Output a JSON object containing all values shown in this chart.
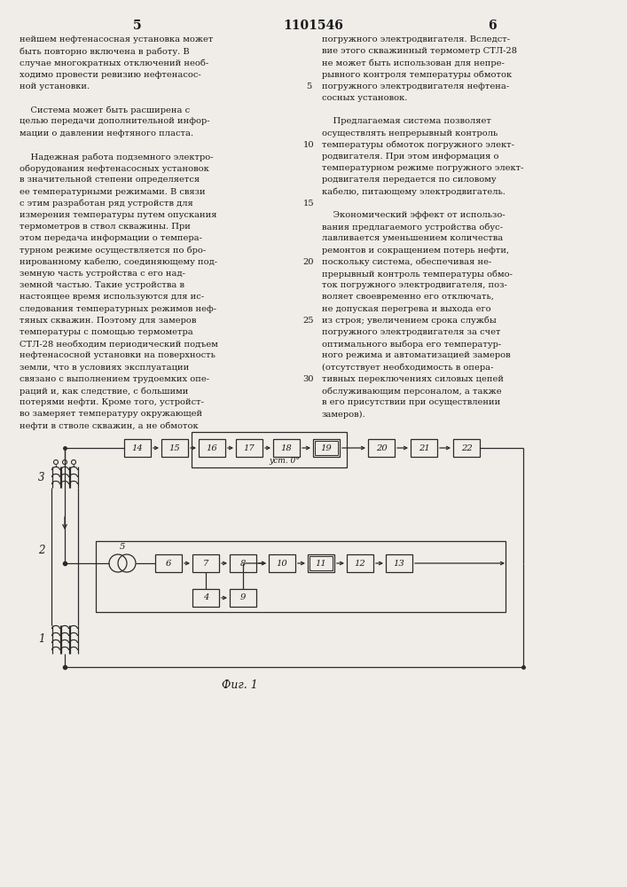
{
  "page_number_left": "5",
  "patent_number": "1101546",
  "page_number_right": "6",
  "background_color": "#f0ede8",
  "text_color": "#1a1a1a",
  "left_column_text": [
    "нейшем нефтенасосная установка может",
    "быть повторно включена в работу. В",
    "случае многократных отключений необ-",
    "ходимо провести ревизию нефтенасос-",
    "ной установки.",
    "",
    "    Система может быть расширена с",
    "целью передачи дополнительной инфор-",
    "мации о давлении нефтяного пласта.",
    "",
    "    Надежная работа подземного электро-",
    "оборудования нефтенасосных установок",
    "в значительной степени определяется",
    "ее температурными режимами. В связи",
    "с этим разработан ряд устройств для",
    "измерения температуры путем опускания",
    "термометров в ствол скважины. При",
    "этом передача информации о темпера-",
    "турном режиме осуществляется по бро-",
    "нированному кабелю, соединяющему под-",
    "земную часть устройства с его над-",
    "земной частью. Такие устройства в",
    "настоящее время используются для ис-",
    "следования температурных режимов неф-",
    "тяных скважин. Поэтому для замеров",
    "температуры с помощью термометра",
    "СТЛ-28 необходим периодический подъем",
    "нефтенасосной установки на поверхность",
    "земли, что в условиях эксплуатации",
    "связано с выполнением трудоемких опе-",
    "раций и, как следствие, с большими",
    "потерями нефти. Кроме того, устройст-",
    "во замеряет температуру окружающей",
    "нефти в стволе скважин, а не обмоток"
  ],
  "right_column_text": [
    "погружного электродвигателя. Вследст-",
    "вие этого скважинный термометр СТЛ-28",
    "не может быть использован для непре-",
    "рывного контроля температуры обмоток",
    "погружного электродвигателя нефтена-",
    "сосных установок.",
    "",
    "    Предлагаемая система позволяет",
    "осуществлять непрерывный контроль",
    "температуры обмоток погружного элект-",
    "родвигателя. При этом информация о",
    "температурном режиме погружного элект-",
    "родвигателя передается по силовому",
    "кабелю, питающему электродвигатель.",
    "",
    "    Экономический эффект от использо-",
    "вания предлагаемого устройства обус-",
    "лавливается уменьшением количества",
    "ремонтов и сокращением потерь нефти,",
    "поскольку система, обеспечивая не-",
    "прерывный контроль температуры обмо-",
    "ток погружного электродвигателя, поз-",
    "воляет своевременно его отключать,",
    "не допуская перегрева и выхода его",
    "из строя; увеличением срока службы",
    "погружного электродвигателя за счет",
    "оптимального выбора его температур-",
    "ного режима и автоматизацией замеров",
    "(отсутствует необходимость в опера-",
    "тивных переключениях силовых цепей",
    "обслуживающим персоналом, а также",
    "в его присутствии при осуществлении",
    "замеров)."
  ],
  "line_numbers_positions": [
    4,
    9,
    14,
    19,
    24,
    29
  ],
  "line_numbers_values": [
    "5",
    "10",
    "15",
    "20",
    "25",
    "30"
  ],
  "fig_label": "Фиг. 1"
}
